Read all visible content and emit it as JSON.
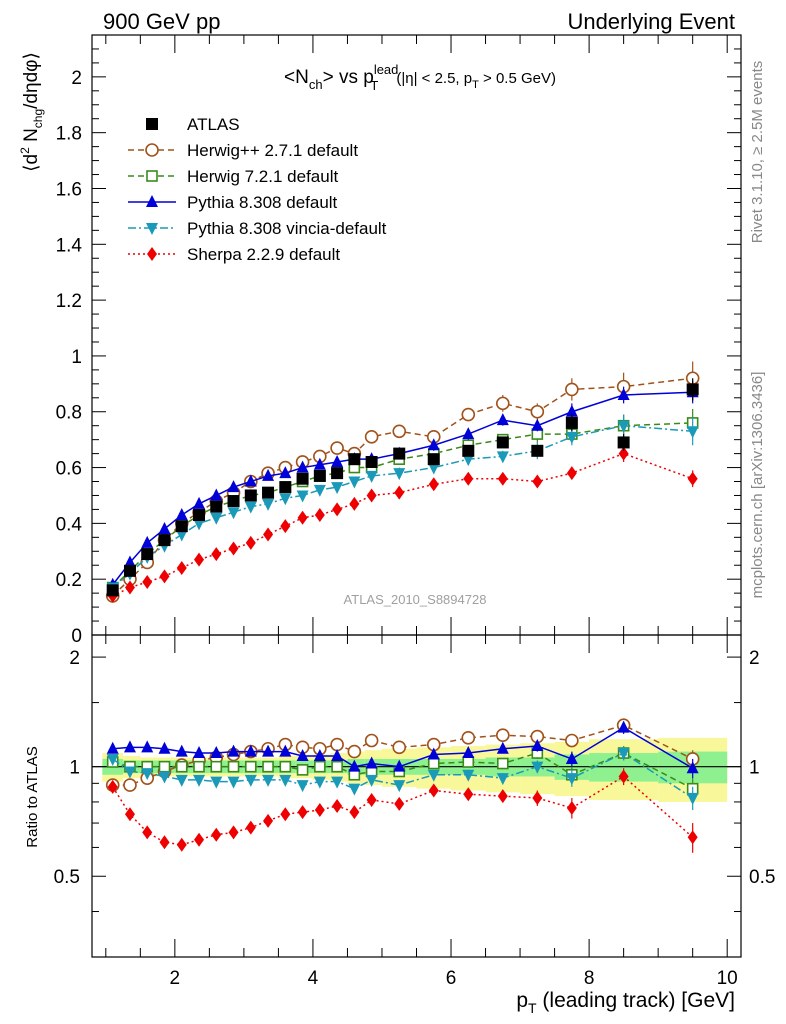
{
  "header": {
    "left": "900 GeV pp",
    "right": "Underlying Event"
  },
  "side_labels": {
    "rivet": "Rivet 3.1.10, ≥ 2.5M events",
    "mcplots": "mcplots.cern.ch [arXiv:1306.3436]"
  },
  "watermark": "ATLAS_2010_S8894728",
  "chart_data": [
    {
      "type": "line",
      "panel": "main",
      "title_parts": {
        "observable": "<N",
        "observable_sub": "ch",
        "mid": "> vs p",
        "p_sup": "lead",
        "p_sub": "T",
        "cuts_a": "(|η| < 2.5, p",
        "cuts_sub": "T",
        "cuts_b": " > 0.5 GeV)"
      },
      "ylabel_parts": {
        "open": "⟨d",
        "sup": "2",
        "mid": " N",
        "sub": "chg",
        "end": "/dηdφ⟩"
      },
      "xlim": [
        0.8,
        10.2
      ],
      "ylim": [
        0,
        2.15
      ],
      "yticks": [
        0,
        0.2,
        0.4,
        0.6,
        0.8,
        1,
        1.2,
        1.4,
        1.6,
        1.8,
        2
      ],
      "ytick_labels": [
        "0",
        "0.2",
        "0.4",
        "0.6",
        "0.8",
        "1",
        "1.2",
        "1.4",
        "1.6",
        "1.8",
        "2"
      ],
      "legend": "top-left",
      "series": [
        {
          "name": "ATLAS",
          "color": "#000000",
          "marker": "square-filled",
          "line": "none",
          "x": [
            1.1,
            1.35,
            1.6,
            1.85,
            2.1,
            2.35,
            2.6,
            2.85,
            3.1,
            3.35,
            3.6,
            3.85,
            4.1,
            4.35,
            4.6,
            4.85,
            5.25,
            5.75,
            6.25,
            6.75,
            7.25,
            7.75,
            8.5,
            9.5
          ],
          "y": [
            0.16,
            0.23,
            0.29,
            0.34,
            0.39,
            0.43,
            0.46,
            0.48,
            0.5,
            0.51,
            0.53,
            0.56,
            0.57,
            0.58,
            0.63,
            0.62,
            0.65,
            0.63,
            0.66,
            0.69,
            0.66,
            0.76,
            0.69,
            0.88
          ],
          "err": [
            0.01,
            0.01,
            0.01,
            0.01,
            0.01,
            0.01,
            0.01,
            0.01,
            0.01,
            0.01,
            0.01,
            0.01,
            0.01,
            0.01,
            0.02,
            0.02,
            0.02,
            0.02,
            0.02,
            0.02,
            0.02,
            0.03,
            0.03,
            0.04
          ]
        },
        {
          "name": "Herwig++ 2.7.1 default",
          "color": "#a0521a",
          "marker": "circle-open",
          "line": "dashed",
          "x": [
            1.1,
            1.35,
            1.6,
            1.85,
            2.1,
            2.35,
            2.6,
            2.85,
            3.1,
            3.35,
            3.6,
            3.85,
            4.1,
            4.35,
            4.6,
            4.85,
            5.25,
            5.75,
            6.25,
            6.75,
            7.25,
            7.75,
            8.5,
            9.5
          ],
          "y": [
            0.14,
            0.2,
            0.26,
            0.34,
            0.4,
            0.44,
            0.48,
            0.51,
            0.55,
            0.58,
            0.6,
            0.62,
            0.64,
            0.67,
            0.65,
            0.71,
            0.73,
            0.71,
            0.79,
            0.83,
            0.8,
            0.88,
            0.89,
            0.92
          ],
          "err": [
            0.01,
            0.01,
            0.01,
            0.01,
            0.01,
            0.01,
            0.01,
            0.01,
            0.01,
            0.01,
            0.01,
            0.01,
            0.01,
            0.01,
            0.01,
            0.02,
            0.02,
            0.02,
            0.02,
            0.03,
            0.03,
            0.04,
            0.05,
            0.06
          ]
        },
        {
          "name": "Herwig 7.2.1 default",
          "color": "#3a8a1a",
          "marker": "square-open",
          "line": "dashed",
          "x": [
            1.1,
            1.35,
            1.6,
            1.85,
            2.1,
            2.35,
            2.6,
            2.85,
            3.1,
            3.35,
            3.6,
            3.85,
            4.1,
            4.35,
            4.6,
            4.85,
            5.25,
            5.75,
            6.25,
            6.75,
            7.25,
            7.75,
            8.5,
            9.5
          ],
          "y": [
            0.17,
            0.23,
            0.29,
            0.34,
            0.39,
            0.43,
            0.46,
            0.48,
            0.5,
            0.51,
            0.53,
            0.55,
            0.57,
            0.58,
            0.6,
            0.6,
            0.63,
            0.65,
            0.68,
            0.7,
            0.72,
            0.72,
            0.75,
            0.76
          ],
          "err": [
            0.01,
            0.01,
            0.01,
            0.01,
            0.01,
            0.01,
            0.01,
            0.01,
            0.01,
            0.01,
            0.01,
            0.01,
            0.01,
            0.01,
            0.01,
            0.01,
            0.02,
            0.02,
            0.02,
            0.02,
            0.03,
            0.03,
            0.04,
            0.05
          ]
        },
        {
          "name": "Pythia 8.308 default",
          "color": "#0000d8",
          "marker": "triangle-up-filled",
          "line": "solid",
          "x": [
            1.1,
            1.35,
            1.6,
            1.85,
            2.1,
            2.35,
            2.6,
            2.85,
            3.1,
            3.35,
            3.6,
            3.85,
            4.1,
            4.35,
            4.6,
            4.85,
            5.25,
            5.75,
            6.25,
            6.75,
            7.25,
            7.75,
            8.5,
            9.5
          ],
          "y": [
            0.18,
            0.26,
            0.33,
            0.38,
            0.43,
            0.47,
            0.5,
            0.53,
            0.55,
            0.57,
            0.58,
            0.6,
            0.61,
            0.62,
            0.63,
            0.63,
            0.65,
            0.68,
            0.72,
            0.77,
            0.75,
            0.8,
            0.86,
            0.87
          ],
          "err": [
            0.01,
            0.01,
            0.01,
            0.01,
            0.01,
            0.01,
            0.01,
            0.01,
            0.01,
            0.01,
            0.01,
            0.01,
            0.01,
            0.01,
            0.01,
            0.01,
            0.01,
            0.02,
            0.02,
            0.02,
            0.02,
            0.03,
            0.03,
            0.04
          ]
        },
        {
          "name": "Pythia 8.308 vincia-default",
          "color": "#1a9ab8",
          "marker": "triangle-down-filled",
          "line": "dashdot",
          "x": [
            1.1,
            1.35,
            1.6,
            1.85,
            2.1,
            2.35,
            2.6,
            2.85,
            3.1,
            3.35,
            3.6,
            3.85,
            4.1,
            4.35,
            4.6,
            4.85,
            5.25,
            5.75,
            6.25,
            6.75,
            7.25,
            7.75,
            8.5,
            9.5
          ],
          "y": [
            0.17,
            0.22,
            0.28,
            0.32,
            0.36,
            0.4,
            0.42,
            0.44,
            0.46,
            0.47,
            0.49,
            0.5,
            0.52,
            0.53,
            0.55,
            0.57,
            0.58,
            0.6,
            0.63,
            0.64,
            0.66,
            0.71,
            0.75,
            0.73
          ],
          "err": [
            0.01,
            0.01,
            0.01,
            0.01,
            0.01,
            0.01,
            0.01,
            0.01,
            0.01,
            0.01,
            0.01,
            0.01,
            0.01,
            0.01,
            0.01,
            0.01,
            0.02,
            0.02,
            0.02,
            0.02,
            0.03,
            0.03,
            0.04,
            0.05
          ]
        },
        {
          "name": "Sherpa 2.2.9 default",
          "color": "#ee0000",
          "marker": "diamond-filled",
          "line": "dotted",
          "x": [
            1.1,
            1.35,
            1.6,
            1.85,
            2.1,
            2.35,
            2.6,
            2.85,
            3.1,
            3.35,
            3.6,
            3.85,
            4.1,
            4.35,
            4.6,
            4.85,
            5.25,
            5.75,
            6.25,
            6.75,
            7.25,
            7.75,
            8.5,
            9.5
          ],
          "y": [
            0.14,
            0.17,
            0.19,
            0.21,
            0.24,
            0.27,
            0.29,
            0.31,
            0.33,
            0.36,
            0.39,
            0.42,
            0.43,
            0.45,
            0.47,
            0.5,
            0.51,
            0.54,
            0.56,
            0.56,
            0.55,
            0.58,
            0.65,
            0.56
          ],
          "err": [
            0.01,
            0.01,
            0.01,
            0.01,
            0.01,
            0.01,
            0.01,
            0.01,
            0.01,
            0.01,
            0.01,
            0.01,
            0.01,
            0.01,
            0.01,
            0.01,
            0.01,
            0.02,
            0.02,
            0.02,
            0.02,
            0.02,
            0.03,
            0.03
          ]
        }
      ]
    },
    {
      "type": "line",
      "panel": "ratio",
      "ylabel": "Ratio to ATLAS",
      "xlabel_parts": {
        "p": "p",
        "sub": "T",
        "rest": " (leading track) [GeV]"
      },
      "xlim": [
        0.8,
        10.2
      ],
      "ylim": [
        0.3,
        2.3
      ],
      "xticks": [
        2,
        4,
        6,
        8,
        10
      ],
      "xtick_labels": [
        "2",
        "4",
        "6",
        "8",
        "10"
      ],
      "yticks": [
        0.5,
        1,
        2
      ],
      "ytick_labels": [
        "0.5",
        "1",
        "2"
      ],
      "bands": {
        "edges": [
          0.95,
          1.25,
          1.5,
          1.75,
          2.0,
          2.25,
          2.5,
          2.75,
          3.0,
          3.25,
          3.5,
          3.75,
          4.0,
          4.25,
          4.5,
          4.75,
          5.0,
          5.5,
          6.0,
          6.5,
          7.0,
          7.5,
          8.0,
          9.0,
          10.0
        ],
        "stat_color": "#8ef08e",
        "total_color": "#f8f89a",
        "stat": [
          0.05,
          0.04,
          0.04,
          0.04,
          0.04,
          0.04,
          0.04,
          0.04,
          0.04,
          0.04,
          0.04,
          0.04,
          0.04,
          0.04,
          0.05,
          0.05,
          0.05,
          0.05,
          0.05,
          0.06,
          0.06,
          0.08,
          0.09,
          0.1
        ],
        "total": [
          0.09,
          0.07,
          0.06,
          0.06,
          0.06,
          0.06,
          0.06,
          0.06,
          0.06,
          0.06,
          0.07,
          0.07,
          0.08,
          0.09,
          0.1,
          0.11,
          0.12,
          0.13,
          0.14,
          0.15,
          0.16,
          0.17,
          0.19,
          0.2
        ]
      },
      "series": [
        {
          "name": "Herwig++ 2.7.1 default",
          "y": [
            0.89,
            0.89,
            0.93,
            0.97,
            1.01,
            1.04,
            1.06,
            1.08,
            1.1,
            1.12,
            1.15,
            1.13,
            1.12,
            1.15,
            1.1,
            1.18,
            1.13,
            1.15,
            1.2,
            1.22,
            1.21,
            1.18,
            1.3,
            1.05
          ],
          "err": [
            0.01,
            0.01,
            0.01,
            0.01,
            0.01,
            0.01,
            0.01,
            0.01,
            0.01,
            0.01,
            0.01,
            0.01,
            0.01,
            0.01,
            0.02,
            0.02,
            0.02,
            0.02,
            0.03,
            0.03,
            0.04,
            0.05,
            0.05,
            0.06
          ]
        },
        {
          "name": "Herwig 7.2.1 default",
          "y": [
            1.03,
            1.0,
            1.0,
            1.0,
            1.0,
            1.0,
            1.0,
            1.0,
            1.0,
            1.0,
            1.0,
            0.98,
            1.0,
            1.0,
            0.95,
            0.97,
            0.97,
            1.02,
            1.03,
            1.02,
            1.09,
            0.95,
            1.09,
            0.87
          ],
          "err": [
            0.01,
            0.01,
            0.01,
            0.01,
            0.01,
            0.01,
            0.01,
            0.01,
            0.01,
            0.01,
            0.01,
            0.01,
            0.01,
            0.01,
            0.02,
            0.02,
            0.02,
            0.02,
            0.03,
            0.03,
            0.04,
            0.05,
            0.05,
            0.06
          ]
        },
        {
          "name": "Pythia 8.308 default",
          "y": [
            1.12,
            1.13,
            1.13,
            1.12,
            1.1,
            1.09,
            1.09,
            1.1,
            1.1,
            1.1,
            1.1,
            1.07,
            1.07,
            1.07,
            1.0,
            1.02,
            1.0,
            1.08,
            1.09,
            1.12,
            1.14,
            1.05,
            1.28,
            0.99
          ],
          "err": [
            0.01,
            0.01,
            0.01,
            0.01,
            0.01,
            0.01,
            0.01,
            0.01,
            0.01,
            0.01,
            0.01,
            0.01,
            0.01,
            0.01,
            0.02,
            0.02,
            0.02,
            0.02,
            0.03,
            0.03,
            0.04,
            0.05,
            0.05,
            0.06
          ]
        },
        {
          "name": "Pythia 8.308 vincia-default",
          "y": [
            1.05,
            0.97,
            0.96,
            0.94,
            0.92,
            0.92,
            0.91,
            0.91,
            0.92,
            0.92,
            0.92,
            0.89,
            0.91,
            0.91,
            0.87,
            0.92,
            0.89,
            0.95,
            0.95,
            0.93,
            1.0,
            0.93,
            1.09,
            0.82
          ],
          "err": [
            0.01,
            0.01,
            0.01,
            0.01,
            0.01,
            0.01,
            0.01,
            0.01,
            0.01,
            0.01,
            0.01,
            0.01,
            0.01,
            0.01,
            0.02,
            0.02,
            0.02,
            0.02,
            0.03,
            0.03,
            0.04,
            0.05,
            0.05,
            0.06
          ]
        },
        {
          "name": "Sherpa 2.2.9 default",
          "y": [
            0.88,
            0.74,
            0.66,
            0.62,
            0.61,
            0.63,
            0.65,
            0.66,
            0.68,
            0.71,
            0.74,
            0.75,
            0.76,
            0.78,
            0.75,
            0.81,
            0.79,
            0.86,
            0.84,
            0.83,
            0.82,
            0.77,
            0.94,
            0.64
          ],
          "err": [
            0.01,
            0.01,
            0.01,
            0.01,
            0.01,
            0.01,
            0.01,
            0.01,
            0.01,
            0.01,
            0.01,
            0.01,
            0.01,
            0.01,
            0.02,
            0.02,
            0.02,
            0.02,
            0.03,
            0.03,
            0.04,
            0.05,
            0.05,
            0.06
          ]
        }
      ]
    }
  ]
}
